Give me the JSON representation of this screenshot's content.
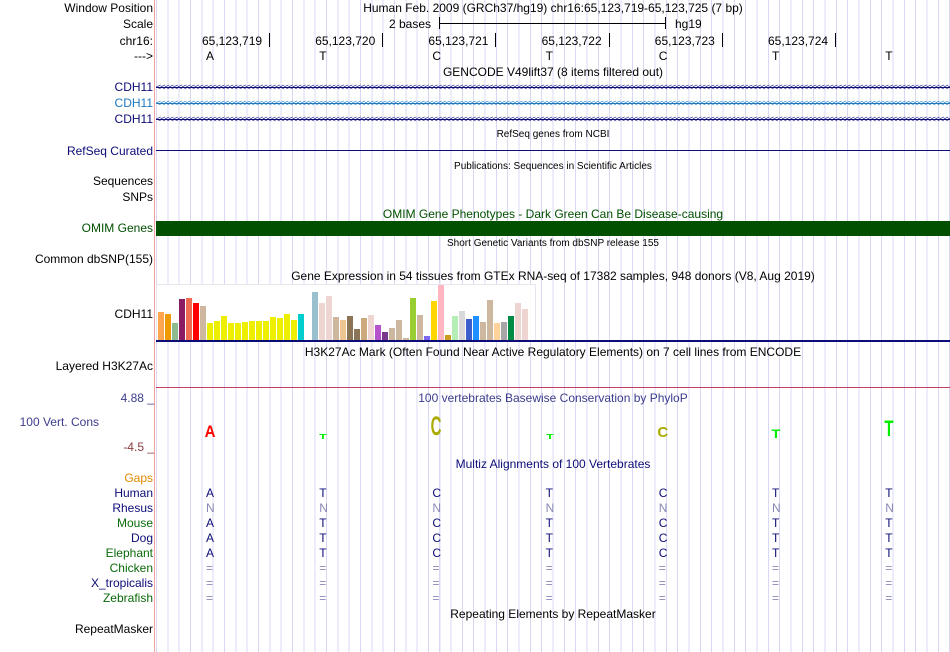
{
  "header": {
    "window_position_label": "Window Position",
    "window_position": "Human Feb. 2009 (GRCh37/hg19)   chr16:65,123,719-65,123,725 (7 bp)",
    "scale_label": "Scale",
    "scale_text": "2 bases",
    "assembly": "hg19",
    "chrom_label": "chr16:",
    "strand_label": "--->"
  },
  "positions": [
    "65,123,719",
    "65,123,720",
    "65,123,721",
    "65,123,722",
    "65,123,723",
    "65,123,724"
  ],
  "bases": [
    "A",
    "T",
    "C",
    "T",
    "C",
    "T",
    "T"
  ],
  "gencode": {
    "title": "GENCODE V49lift37 (8 items filtered out)",
    "genes": [
      {
        "label": "CDH11",
        "color": "#0c0c78"
      },
      {
        "label": "CDH11",
        "color": "#1e78c0"
      },
      {
        "label": "CDH11",
        "color": "#0c0c78"
      }
    ]
  },
  "refseq": {
    "title": "RefSeq genes from NCBI",
    "label": "RefSeq Curated"
  },
  "publications": {
    "title": "Publications: Sequences in Scientific Articles",
    "labels": [
      "Sequences",
      "SNPs"
    ]
  },
  "omim": {
    "title": "OMIM Gene Phenotypes - Dark Green Can Be Disease-causing",
    "label": "OMIM Genes",
    "color": "#005000"
  },
  "dbsnp": {
    "title": "Short Genetic Variants from dbSNP release 155",
    "label": "Common dbSNP(155)"
  },
  "gtex": {
    "title": "Gene Expression in 54 tissues from GTEx RNA-seq of 17382 samples, 948 donors (V8, Aug 2019)",
    "label": "CDH11",
    "values": [
      84,
      78,
      51,
      123,
      126,
      111,
      102,
      51,
      57,
      72,
      51,
      51,
      54,
      57,
      57,
      57,
      69,
      66,
      78,
      60,
      78,
      0,
      144,
      111,
      132,
      69,
      60,
      72,
      33,
      66,
      75,
      45,
      24,
      36,
      60,
      6,
      126,
      75,
      12,
      117,
      165,
      15,
      72,
      87,
      63,
      72,
      54,
      120,
      51,
      54,
      72,
      111,
      93,
      0
    ],
    "colors": [
      "#ffa54f",
      "#ee9a00",
      "#8fbc8f",
      "#8b1c62",
      "#ee6a50",
      "#ff0000",
      "#cdb79e",
      "#eeee00",
      "#eeee00",
      "#eeee00",
      "#eeee00",
      "#eeee00",
      "#eeee00",
      "#eeee00",
      "#eeee00",
      "#eeee00",
      "#eeee00",
      "#eeee00",
      "#eeee00",
      "#eeee00",
      "#00cdcd",
      "#ffffff",
      "#9ac0cd",
      "#eed5d2",
      "#eed5d2",
      "#cdb79e",
      "#eec591",
      "#8b7355",
      "#8b7355",
      "#cdaa7d",
      "#eed5d2",
      "#b452cd",
      "#7a378b",
      "#cdb79e",
      "#cdb79e",
      "#cdb79e",
      "#9acd32",
      "#cdb79e",
      "#7b68ee",
      "#ffd700",
      "#ffb6c1",
      "#cd9b1d",
      "#b4eeb4",
      "#d9d9d9",
      "#3a5fcd",
      "#1e90ff",
      "#cdb79e",
      "#cdb79e",
      "#ffd39b",
      "#a6a6a6",
      "#008b45",
      "#eed5d2",
      "#eed5d2",
      "#ffffff"
    ]
  },
  "h3k27ac": {
    "title": "H3K27Ac Mark (Often Found Near Active Regulatory Elements) on 7 cell lines from ENCODE",
    "label": "Layered H3K27Ac"
  },
  "phylop": {
    "title": "100 vertebrates Basewise Conservation by PhyloP",
    "label": "100 Vert. Cons",
    "max": "4.88 _",
    "min": "-4.5 _",
    "scores": [
      0.55,
      0.25,
      0.9,
      0.25,
      0.5,
      0.4,
      0.75
    ],
    "colors": [
      "#ff0000",
      "#00ee00",
      "#aaaa00",
      "#00ee00",
      "#aaaa00",
      "#00ee00",
      "#00ee00"
    ]
  },
  "multiz": {
    "title": "Multiz Alignments of 100 Vertebrates",
    "gaps_label": "Gaps",
    "species": [
      {
        "name": "Human",
        "color": "#0c0c78",
        "seq": [
          "A",
          "T",
          "C",
          "T",
          "C",
          "T",
          "T"
        ],
        "seq_color": "#0c0c78"
      },
      {
        "name": "Rhesus",
        "color": "#0c0c78",
        "seq": [
          "N",
          "N",
          "N",
          "N",
          "N",
          "N",
          "N"
        ],
        "seq_color": "#8888b8"
      },
      {
        "name": "Mouse",
        "color": "#0a6a0a",
        "seq": [
          "A",
          "T",
          "C",
          "T",
          "C",
          "T",
          "T"
        ],
        "seq_color": "#0c0c78"
      },
      {
        "name": "Dog",
        "color": "#0c0c78",
        "seq": [
          "A",
          "T",
          "C",
          "T",
          "C",
          "T",
          "T"
        ],
        "seq_color": "#0c0c78"
      },
      {
        "name": "Elephant",
        "color": "#0a6a0a",
        "seq": [
          "A",
          "T",
          "C",
          "T",
          "C",
          "T",
          "T"
        ],
        "seq_color": "#0c0c78"
      },
      {
        "name": "Chicken",
        "color": "#0a6a0a",
        "seq": [
          "=",
          "=",
          "=",
          "=",
          "=",
          "=",
          "="
        ],
        "seq_color": "#8888b8"
      },
      {
        "name": "X_tropicalis",
        "color": "#0c0c78",
        "seq": [
          "=",
          "=",
          "=",
          "=",
          "=",
          "=",
          "="
        ],
        "seq_color": "#8888b8"
      },
      {
        "name": "Zebrafish",
        "color": "#0a6a0a",
        "seq": [
          "=",
          "=",
          "=",
          "=",
          "=",
          "=",
          "="
        ],
        "seq_color": "#8888b8"
      }
    ]
  },
  "repeatmasker": {
    "title": "Repeating Elements by RepeatMasker",
    "label": "RepeatMasker"
  }
}
